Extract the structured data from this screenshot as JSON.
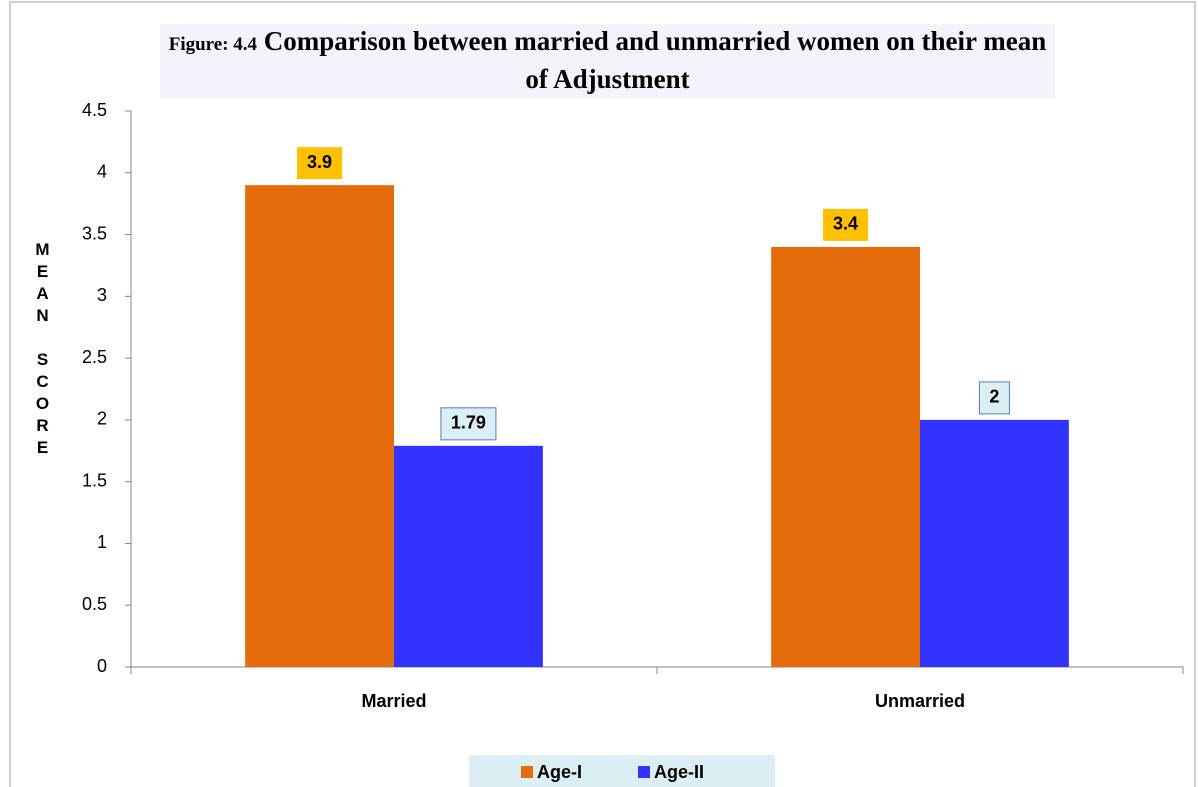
{
  "chart_data": {
    "type": "bar",
    "figure_label": "Figure: 4.4",
    "title": "Comparison between married and unmarried women on their mean of Adjustment",
    "y_label": "MEAN SCORE",
    "categories": [
      "Married",
      "Unmarried"
    ],
    "series": [
      {
        "name": "Age-I",
        "color": "#e46c0a",
        "label_background": "#ffc000",
        "values": [
          3.9,
          3.4
        ]
      },
      {
        "name": "Age-II",
        "color": "#3333ff",
        "label_background": "#dbeef4",
        "values": [
          1.79,
          2
        ]
      }
    ],
    "ylim": [
      0,
      4.5
    ],
    "yticks": [
      0,
      0.5,
      1,
      1.5,
      2,
      2.5,
      3,
      3.5,
      4,
      4.5
    ],
    "grid": false,
    "legend": "bottom"
  }
}
